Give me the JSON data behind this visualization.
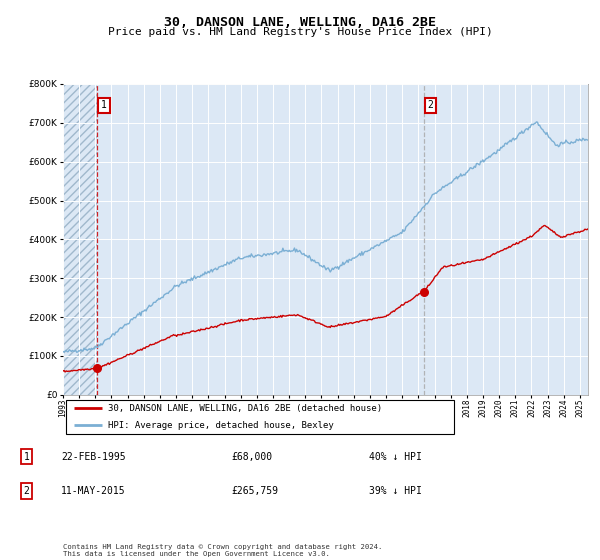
{
  "title": "30, DANSON LANE, WELLING, DA16 2BE",
  "subtitle": "Price paid vs. HM Land Registry's House Price Index (HPI)",
  "title_fontsize": 9.5,
  "subtitle_fontsize": 8,
  "bg_color": "#dce8f5",
  "grid_color": "#ffffff",
  "red_line_color": "#cc0000",
  "blue_line_color": "#7bafd4",
  "marker_color": "#cc0000",
  "vline1_color": "#cc0000",
  "vline2_color": "#aaaaaa",
  "annotation_box_color": "#cc0000",
  "sale1_date_num": 1995.13,
  "sale1_price": 68000,
  "sale2_date_num": 2015.36,
  "sale2_price": 265759,
  "legend_line1": "30, DANSON LANE, WELLING, DA16 2BE (detached house)",
  "legend_line2": "HPI: Average price, detached house, Bexley",
  "table_row1_num": "1",
  "table_row1_date": "22-FEB-1995",
  "table_row1_price": "£68,000",
  "table_row1_hpi": "40% ↓ HPI",
  "table_row2_num": "2",
  "table_row2_date": "11-MAY-2015",
  "table_row2_price": "£265,759",
  "table_row2_hpi": "39% ↓ HPI",
  "footer": "Contains HM Land Registry data © Crown copyright and database right 2024.\nThis data is licensed under the Open Government Licence v3.0.",
  "ylim": [
    0,
    800000
  ],
  "xlim_start": 1993.0,
  "xlim_end": 2025.5
}
